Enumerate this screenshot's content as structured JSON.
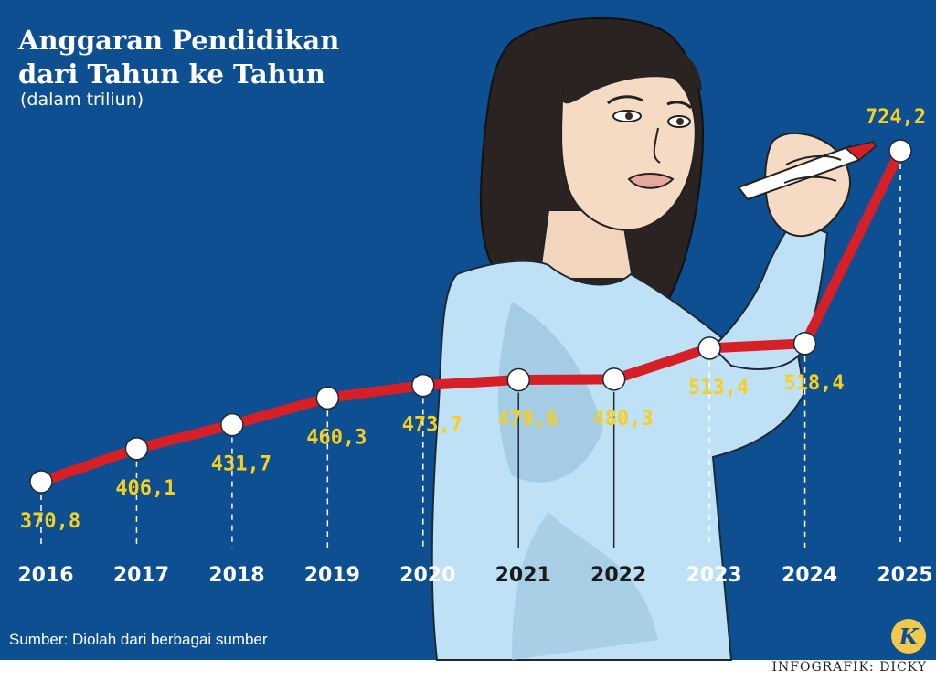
{
  "header": {
    "title_line1": "Anggaran Pendidikan",
    "title_line2": "dari Tahun ke Tahun",
    "subtitle": "(dalam triliun)"
  },
  "footer": {
    "source": "Sumber: Diolah dari berbagai sumber",
    "credit": "INFOGRAFIK: DICKY",
    "logo_letter": "K"
  },
  "colors": {
    "background": "#0d4f91",
    "line": "#d62027",
    "value_label": "#f5d020",
    "marker": "#ffffff",
    "figure_shirt": "#bfe1f5",
    "footer_band": "#ffffff",
    "logo": "#f2c94c"
  },
  "icons": {
    "illustration": "woman-drawing-with-marker",
    "logo": "k-logo-icon"
  },
  "chart_data": {
    "type": "line",
    "title": "Anggaran Pendidikan dari Tahun ke Tahun",
    "subtitle": "(dalam triliun)",
    "categories": [
      "2016",
      "2017",
      "2018",
      "2019",
      "2020",
      "2021",
      "2022",
      "2023",
      "2024",
      "2025"
    ],
    "values": [
      370.8,
      406.1,
      431.7,
      460.3,
      473.7,
      479.6,
      480.3,
      513.4,
      518.4,
      724.2
    ],
    "value_labels": [
      "370,8",
      "406,1",
      "431,7",
      "460,3",
      "473,7",
      "479,6",
      "480,3",
      "513,4",
      "518,4",
      "724,2"
    ],
    "xlabel": "",
    "ylabel": "",
    "grid": false,
    "legend": "none"
  }
}
